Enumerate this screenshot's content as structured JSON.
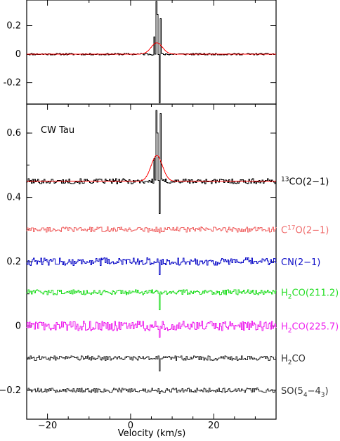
{
  "chart_data": [
    {
      "type": "line",
      "panel": "top",
      "xlim": [
        -25,
        35
      ],
      "ylim": [
        -0.35,
        0.38
      ],
      "ytick_labels": [
        "-0.2",
        "0",
        "0.2"
      ],
      "yticks": [
        -0.2,
        0,
        0.2
      ],
      "series": [
        {
          "color": "#000000",
          "style": "histogram",
          "notable_values": {
            "baseline": 0.0,
            "peak_velocity": 6.5,
            "peak_value": 0.37,
            "trough_velocity": 7.0,
            "trough_value": -0.34
          }
        },
        {
          "color": "#ff0000",
          "style": "gaussian-fit",
          "gaussian": {
            "amplitude": 0.08,
            "center": 6.3,
            "fwhm": 3.2
          }
        }
      ]
    },
    {
      "type": "line",
      "panel": "bottom",
      "annotation": "CW Tau",
      "xlabel": "Velocity (km/s)",
      "xlim": [
        -25,
        35
      ],
      "xticks": [
        -20,
        0,
        20
      ],
      "xtick_labels": [
        "−20",
        "0",
        "20"
      ],
      "ylim": [
        -0.29,
        0.69
      ],
      "yticks": [
        -0.2,
        0,
        0.2,
        0.4,
        0.6
      ],
      "ytick_labels": [
        "−0.2",
        "0",
        "0.2",
        "0.4",
        "0.6"
      ],
      "series": [
        {
          "color": "#000000",
          "offset": 0.45,
          "noise_amplitude": 0.008,
          "line_amplitude": 0.3,
          "fit": {
            "color": "#ff0000",
            "amplitude": 0.08,
            "center": 6.3,
            "fwhm": 3.2
          },
          "label": {
            "pre": "",
            "sup": "13",
            "base": "CO(2−1)",
            "sub": "",
            "post": ""
          }
        },
        {
          "color": "#f06a6a",
          "offset": 0.3,
          "noise_amplitude": 0.008,
          "line_amplitude": 0.01,
          "label": {
            "pre": "C",
            "sup": "17",
            "base": "O(2−1)",
            "sub": "",
            "post": ""
          }
        },
        {
          "color": "#1010c8",
          "offset": 0.2,
          "noise_amplitude": 0.012,
          "line_amplitude": 0.04,
          "filled": true,
          "label": {
            "pre": "",
            "sup": "",
            "base": "CN(2−1)",
            "sub": "",
            "post": ""
          }
        },
        {
          "color": "#22dd22",
          "offset": 0.105,
          "noise_amplitude": 0.008,
          "line_amplitude": 0.055,
          "label": {
            "pre": "H",
            "sub": "2",
            "base": "CO(211.2)",
            "sup": "",
            "post": ""
          }
        },
        {
          "color": "#ee22ee",
          "offset": 0.0,
          "noise_amplitude": 0.015,
          "line_amplitude": 0.035,
          "label": {
            "pre": "H",
            "sub": "2",
            "base": "CO(225.7)",
            "sup": "",
            "post": ""
          }
        },
        {
          "color": "#333333",
          "offset": -0.1,
          "noise_amplitude": 0.007,
          "line_amplitude": 0.04,
          "label": {
            "pre": "H",
            "sub": "2",
            "base": "CO",
            "sup": "",
            "post": ""
          }
        },
        {
          "color": "#333333",
          "offset": -0.2,
          "noise_amplitude": 0.007,
          "line_amplitude": 0.01,
          "label": {
            "pre": "SO(5",
            "sub": "4",
            "base": "−4",
            "sub2": "3",
            "post": ")"
          }
        }
      ]
    }
  ]
}
